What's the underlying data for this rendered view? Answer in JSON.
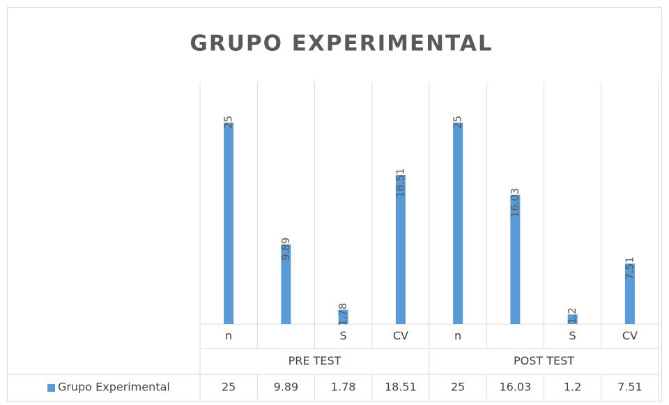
{
  "chart_data": {
    "type": "bar",
    "title": "GRUPO EXPERIMENTAL",
    "categories": [
      "n",
      null,
      "S",
      "CV",
      "n",
      null,
      "S",
      "CV"
    ],
    "groups": [
      "PRE TEST",
      "POST TEST"
    ],
    "series": [
      {
        "name": "Grupo Experimental",
        "color": "#5b9bd5",
        "values": [
          25,
          9.89,
          1.78,
          18.51,
          25,
          16.03,
          1.2,
          7.51
        ]
      }
    ],
    "ylim": [
      0,
      30
    ],
    "data_table": true
  }
}
